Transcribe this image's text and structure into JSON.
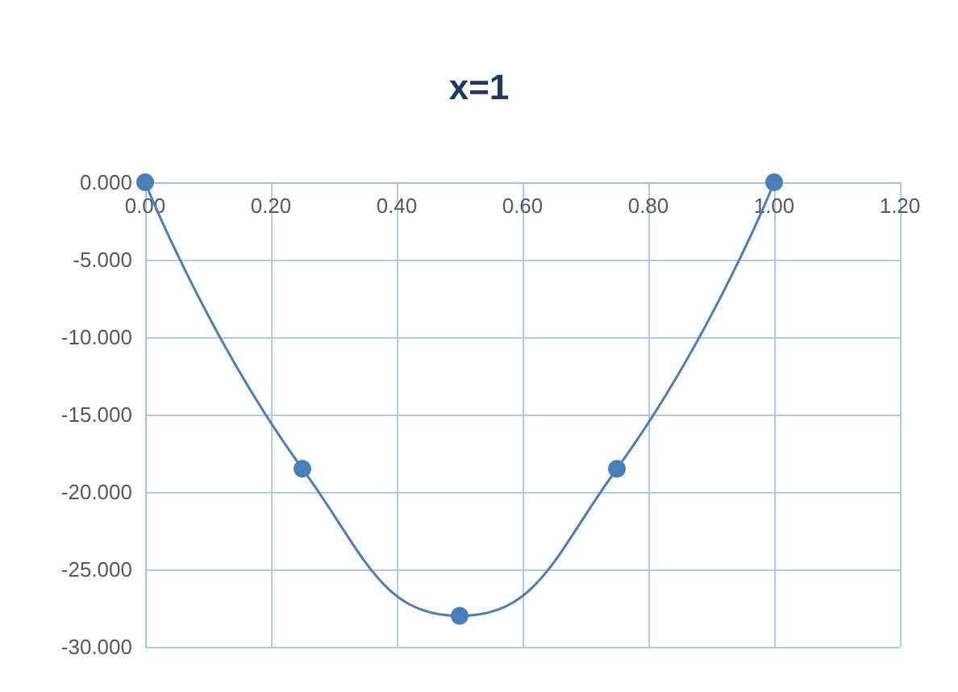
{
  "chart_data": {
    "type": "line",
    "title": "x=1",
    "x": [
      0,
      0.25,
      0.5,
      0.75,
      1
    ],
    "series": [
      {
        "color": "#4a7ebb",
        "values": [
          0,
          -18.5,
          -28,
          -18.5,
          0
        ]
      }
    ],
    "xlim": [
      0,
      1.2
    ],
    "xticks": [
      {
        "value": 0,
        "label": "0.00"
      },
      {
        "value": 0.2,
        "label": "0.20"
      },
      {
        "value": 0.4,
        "label": "0.40"
      },
      {
        "value": 0.6,
        "label": "0.60"
      },
      {
        "value": 0.8,
        "label": "0.80"
      },
      {
        "value": 1,
        "label": "1.00"
      },
      {
        "value": 1.2,
        "label": "1.20"
      }
    ],
    "ylim": [
      -30,
      0
    ],
    "yticks": [
      {
        "value": 0,
        "label": "0.000"
      },
      {
        "value": -5,
        "label": "-5.000"
      },
      {
        "value": -10,
        "label": "-10.000"
      },
      {
        "value": -15,
        "label": "-15.000"
      },
      {
        "value": -20,
        "label": "-20.000"
      },
      {
        "value": -25,
        "label": "-25.000"
      },
      {
        "value": -30,
        "label": "-30.000"
      }
    ],
    "grid": true,
    "marker": "circle",
    "line_style": "solid"
  }
}
